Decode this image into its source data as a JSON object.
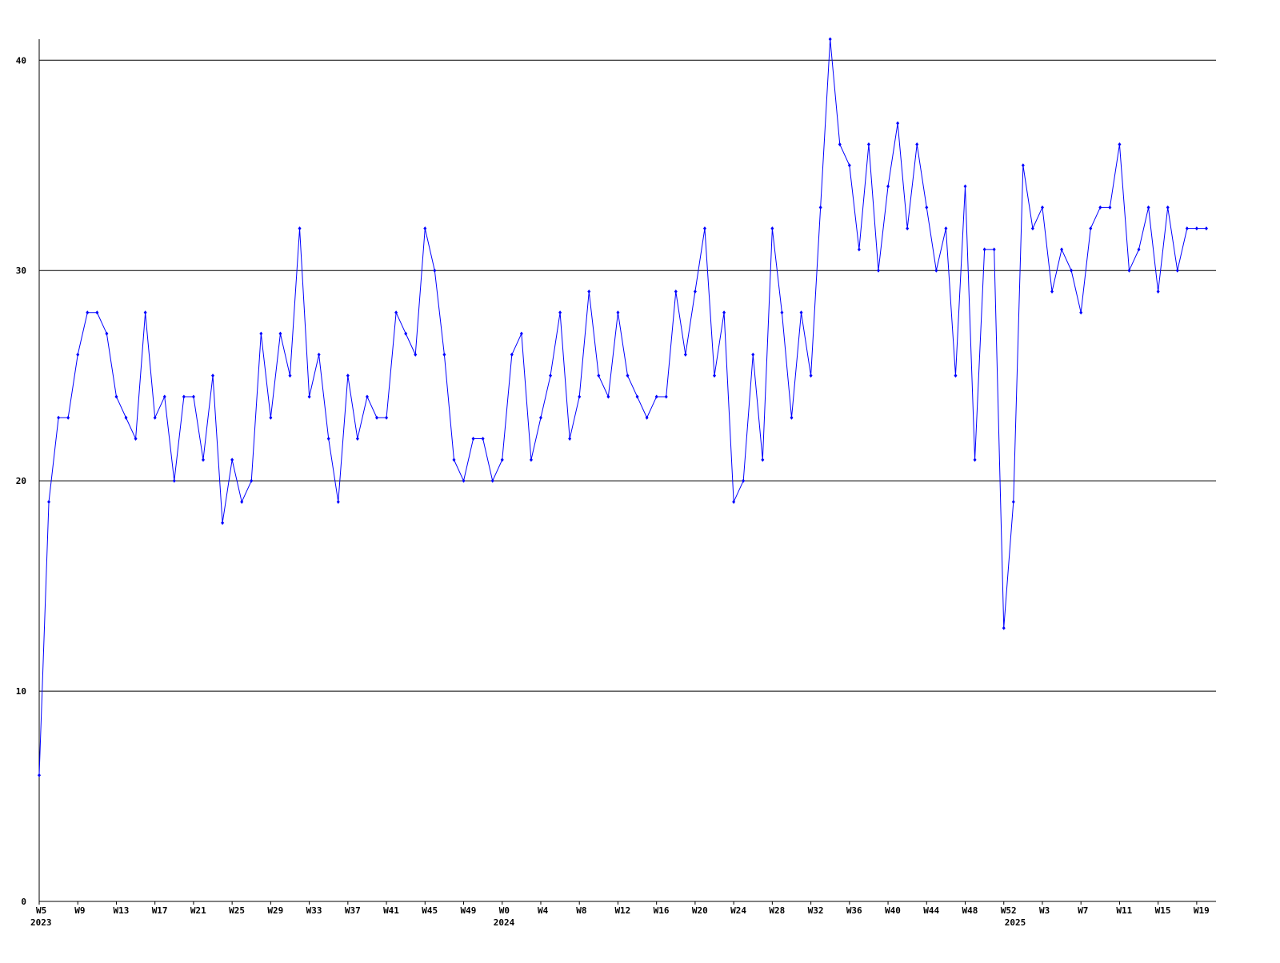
{
  "chart_data": {
    "type": "line",
    "categories": [
      "W5",
      null,
      null,
      null,
      "W9",
      null,
      null,
      null,
      "W13",
      null,
      null,
      null,
      "W17",
      null,
      null,
      null,
      "W21",
      null,
      null,
      null,
      "W25",
      null,
      null,
      null,
      "W29",
      null,
      null,
      null,
      "W33",
      null,
      null,
      null,
      "W37",
      null,
      null,
      null,
      "W41",
      null,
      null,
      null,
      "W45",
      null,
      null,
      null,
      "W49",
      null,
      null,
      null,
      "W0",
      null,
      null,
      null,
      "W4",
      null,
      null,
      null,
      "W8",
      null,
      null,
      null,
      "W12",
      null,
      null,
      null,
      "W16",
      null,
      null,
      null,
      "W20",
      null,
      null,
      null,
      "W24",
      null,
      null,
      null,
      "W28",
      null,
      null,
      null,
      "W32",
      null,
      null,
      null,
      "W36",
      null,
      null,
      null,
      "W40",
      null,
      null,
      null,
      "W44",
      null,
      null,
      null,
      "W48",
      null,
      null,
      null,
      "W52",
      null,
      null,
      null,
      "W3",
      null,
      null,
      null,
      "W7",
      null,
      null,
      null,
      "W11",
      null,
      null,
      null,
      "W15",
      null,
      null,
      null,
      "W19",
      null
    ],
    "category_years": [
      "2023",
      null,
      null,
      null,
      null,
      null,
      null,
      null,
      null,
      null,
      null,
      null,
      null,
      null,
      null,
      null,
      null,
      null,
      null,
      null,
      null,
      null,
      null,
      null,
      null,
      null,
      null,
      null,
      null,
      null,
      null,
      null,
      null,
      null,
      null,
      null,
      null,
      null,
      null,
      null,
      null,
      null,
      null,
      null,
      null,
      null,
      null,
      null,
      "2024",
      null,
      null,
      null,
      null,
      null,
      null,
      null,
      null,
      null,
      null,
      null,
      null,
      null,
      null,
      null,
      null,
      null,
      null,
      null,
      null,
      null,
      null,
      null,
      null,
      null,
      null,
      null,
      null,
      null,
      null,
      null,
      null,
      null,
      null,
      null,
      null,
      null,
      null,
      null,
      null,
      null,
      null,
      null,
      null,
      null,
      null,
      null,
      null,
      null,
      null,
      null,
      null,
      "2025",
      null,
      null,
      null,
      null,
      null,
      null,
      null,
      null,
      null,
      null,
      null,
      null,
      null,
      null,
      null,
      null,
      null,
      null,
      null,
      null
    ],
    "series": [
      {
        "color": "#0000ff",
        "values": [
          6,
          19,
          23,
          23,
          26,
          28,
          28,
          27,
          24,
          23,
          22,
          28,
          23,
          24,
          20,
          24,
          24,
          21,
          25,
          18,
          21,
          19,
          20,
          27,
          23,
          27,
          25,
          32,
          24,
          26,
          22,
          19,
          25,
          22,
          24,
          23,
          23,
          28,
          27,
          26,
          32,
          30,
          26,
          21,
          20,
          22,
          22,
          20,
          21,
          26,
          27,
          21,
          23,
          25,
          28,
          22,
          24,
          29,
          25,
          24,
          28,
          25,
          24,
          23,
          24,
          24,
          29,
          26,
          29,
          32,
          25,
          28,
          19,
          20,
          26,
          21,
          32,
          28,
          23,
          28,
          25,
          33,
          41,
          36,
          35,
          31,
          36,
          30,
          34,
          37,
          32,
          36,
          33,
          30,
          32,
          25,
          34,
          21,
          31,
          31,
          13,
          19,
          35,
          32,
          33,
          29,
          31,
          30,
          28,
          32,
          33,
          33,
          36,
          30,
          31,
          33,
          29,
          33,
          30,
          32,
          32,
          32
        ]
      }
    ],
    "ylim": [
      0,
      41
    ],
    "yticks": [
      0,
      10,
      20,
      30,
      40
    ],
    "grid": true
  }
}
